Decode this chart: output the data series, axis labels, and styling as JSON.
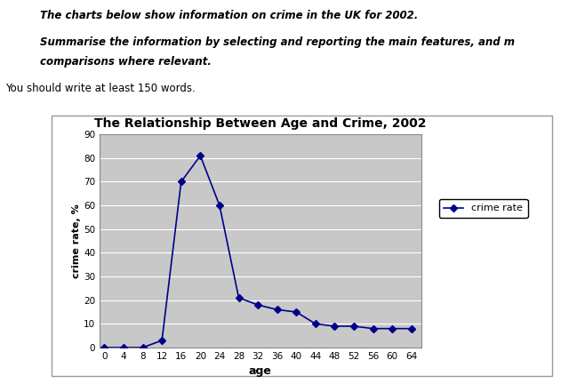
{
  "title": "The Relationship Between Age and Crime, 2002",
  "xlabel": "age",
  "ylabel": "crime rate, %",
  "ages": [
    0,
    4,
    8,
    12,
    16,
    20,
    24,
    28,
    32,
    36,
    40,
    44,
    48,
    52,
    56,
    60,
    64
  ],
  "crime_rate": [
    0,
    0,
    0,
    3,
    70,
    81,
    60,
    21,
    18,
    16,
    15,
    10,
    9,
    9,
    8,
    8,
    8
  ],
  "ylim": [
    0,
    90
  ],
  "yticks": [
    0,
    10,
    20,
    30,
    40,
    50,
    60,
    70,
    80,
    90
  ],
  "xticks": [
    0,
    4,
    8,
    12,
    16,
    20,
    24,
    28,
    32,
    36,
    40,
    44,
    48,
    52,
    56,
    60,
    64
  ],
  "line_color": "#00008B",
  "marker": "D",
  "marker_size": 4,
  "legend_label": "crime rate",
  "text_line1": "The charts below show information on crime in the UK for 2002.",
  "text_line2": "Summarise the information by selecting and reporting the main features, and m",
  "text_line3": "comparisons where relevant.",
  "text_line4": "You should write at least 150 words.",
  "bg_color": "#C8C8C8",
  "outer_box_color": "#FFFFFF"
}
